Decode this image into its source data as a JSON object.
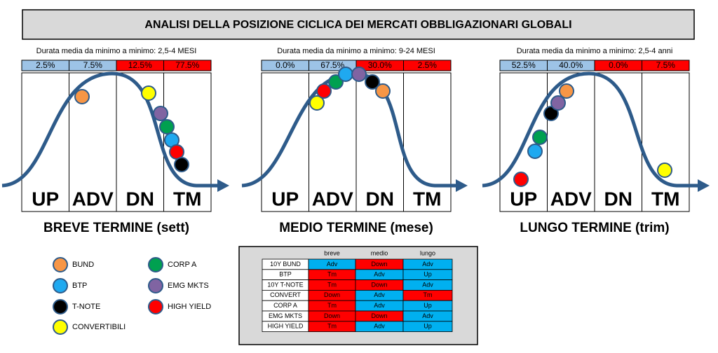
{
  "title": "ANALISI DELLA POSIZIONE CICLICA DEI MERCATI OBBLIGAZIONARI GLOBALI",
  "panels": [
    {
      "duration": "Durata media da minimo a minimo: 2,5-4 MESI",
      "shares": [
        {
          "text": "2.5%",
          "color": "#9dc3e6"
        },
        {
          "text": "7.5%",
          "color": "#9dc3e6"
        },
        {
          "text": "12.5%",
          "color": "#ff0000"
        },
        {
          "text": "77.5%",
          "color": "#ff0000"
        }
      ],
      "phases": [
        "UP",
        "ADV",
        "DN",
        "TM"
      ],
      "label": "BREVE TERMINE (sett)"
    },
    {
      "duration": "Durata media da minimo a minimo: 9-24 MESI",
      "shares": [
        {
          "text": "0.0%",
          "color": "#9dc3e6"
        },
        {
          "text": "67.5%",
          "color": "#9dc3e6"
        },
        {
          "text": "30.0%",
          "color": "#ff0000"
        },
        {
          "text": "2.5%",
          "color": "#ff0000"
        }
      ],
      "phases": [
        "UP",
        "ADV",
        "DN",
        "TM"
      ],
      "label": "MEDIO TERMINE (mese)"
    },
    {
      "duration": "Durata media da minimo a minimo: 2,5-4 anni",
      "shares": [
        {
          "text": "52.5%",
          "color": "#9dc3e6"
        },
        {
          "text": "40.0%",
          "color": "#9dc3e6"
        },
        {
          "text": "0.0%",
          "color": "#ff0000"
        },
        {
          "text": "7.5%",
          "color": "#ff0000"
        }
      ],
      "phases": [
        "UP",
        "ADV",
        "DN",
        "TM"
      ],
      "label": "LUNGO TERMINE (trim)"
    }
  ],
  "legend": [
    {
      "label": "BUND",
      "color": "#f79646"
    },
    {
      "label": "BTP",
      "color": "#1fa9f0"
    },
    {
      "label": "T-NOTE",
      "color": "#000000"
    },
    {
      "label": "CONVERTIBILI",
      "color": "#ffff00"
    },
    {
      "label": "CORP A",
      "color": "#00a050"
    },
    {
      "label": "EMG MKTS",
      "color": "#8064a2"
    },
    {
      "label": "HIGH YIELD",
      "color": "#ff0000"
    }
  ],
  "table": {
    "header": [
      "breve",
      "medio",
      "lungo"
    ],
    "rows": [
      {
        "label": "10Y BUND",
        "cells": [
          {
            "text": "Adv",
            "color": "#00b0f0"
          },
          {
            "text": "Down",
            "color": "#ff0000"
          },
          {
            "text": "Adv",
            "color": "#00b0f0"
          }
        ]
      },
      {
        "label": "BTP",
        "cells": [
          {
            "text": "Tm",
            "color": "#ff0000"
          },
          {
            "text": "Adv",
            "color": "#00b0f0"
          },
          {
            "text": "Up",
            "color": "#00b0f0"
          }
        ]
      },
      {
        "label": "10Y T-NOTE",
        "cells": [
          {
            "text": "Tm",
            "color": "#ff0000"
          },
          {
            "text": "Down",
            "color": "#ff0000"
          },
          {
            "text": "Adv",
            "color": "#00b0f0"
          }
        ]
      },
      {
        "label": "CONVERT",
        "cells": [
          {
            "text": "Down",
            "color": "#ff0000"
          },
          {
            "text": "Adv",
            "color": "#00b0f0"
          },
          {
            "text": "Tm",
            "color": "#ff0000"
          }
        ]
      },
      {
        "label": "CORP A",
        "cells": [
          {
            "text": "Tm",
            "color": "#ff0000"
          },
          {
            "text": "Adv",
            "color": "#00b0f0"
          },
          {
            "text": "Up",
            "color": "#00b0f0"
          }
        ]
      },
      {
        "label": "EMG MKTS",
        "cells": [
          {
            "text": "Down",
            "color": "#ff0000"
          },
          {
            "text": "Down",
            "color": "#ff0000"
          },
          {
            "text": "Adv",
            "color": "#00b0f0"
          }
        ]
      },
      {
        "label": "HIGH YIELD",
        "cells": [
          {
            "text": "Tm",
            "color": "#ff0000"
          },
          {
            "text": "Adv",
            "color": "#00b0f0"
          },
          {
            "text": "Up",
            "color": "#00b0f0"
          }
        ]
      }
    ]
  }
}
